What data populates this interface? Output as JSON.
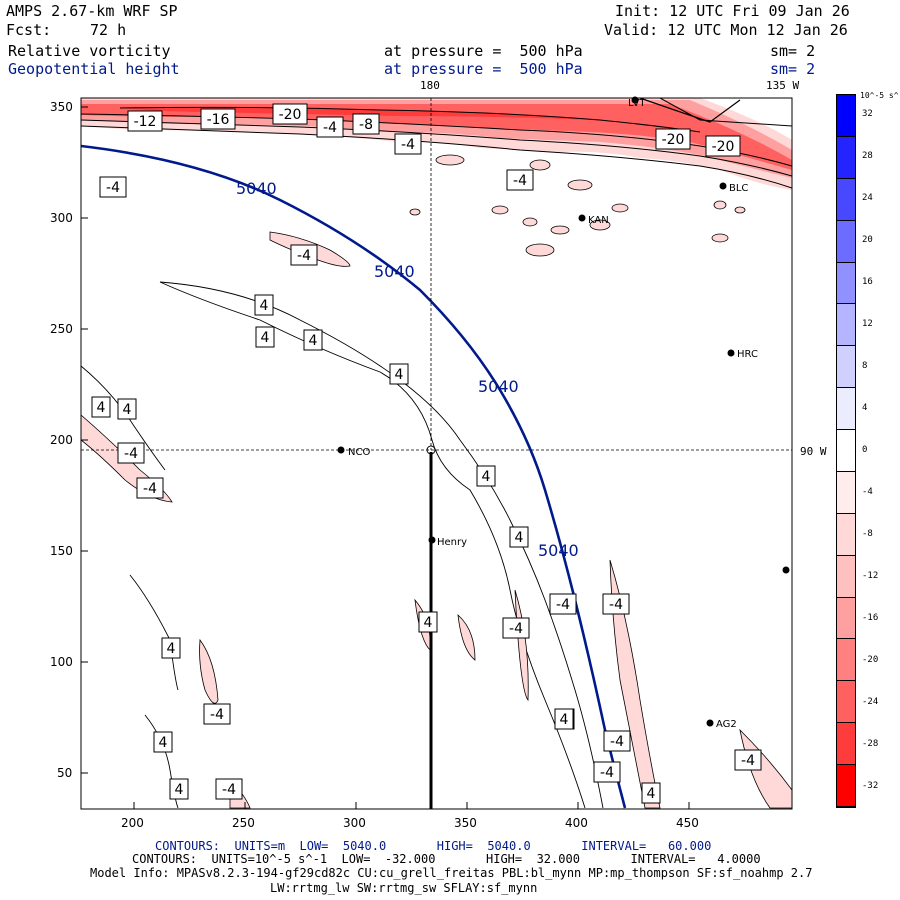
{
  "header": {
    "model": "AMPS 2.67-km WRF SP",
    "init": "Init: 12 UTC Fri 09 Jan 26",
    "fcst_label": "Fcst:",
    "fcst_value": "72 h",
    "valid": "Valid: 12 UTC Mon 12 Jan 26",
    "field1_name": "Relative vorticity",
    "field1_level": "at pressure =  500 hPa",
    "field1_sm": "sm= 2",
    "field2_name": "Geopotential height",
    "field2_level": "at pressure =  500 hPa",
    "field2_sm": "sm= 2"
  },
  "map": {
    "lon_label_180": "180",
    "lon_label_135w": "135 W",
    "lon_label_90w": "90 W",
    "x_ticks": [
      "200",
      "250",
      "300",
      "350",
      "400",
      "450"
    ],
    "y_ticks": [
      "350",
      "300",
      "250",
      "200",
      "150",
      "100",
      "50"
    ],
    "stations": [
      {
        "name": "LVT"
      },
      {
        "name": "BLC"
      },
      {
        "name": "KAN"
      },
      {
        "name": "HRC"
      },
      {
        "name": "NCO"
      },
      {
        "name": "Henry"
      },
      {
        "name": "AG2"
      }
    ],
    "height_contour_label": "5040",
    "vorticity_labels": [
      "-12",
      "-16",
      "-20",
      "-4",
      "-8",
      "-4",
      "-20",
      "-20",
      "-4",
      "-4",
      "-4",
      "4",
      "4",
      "4",
      "4",
      "4",
      "4",
      "-4",
      "-4",
      "4",
      "4",
      "-4",
      "4",
      "4",
      "-4",
      "-4",
      "4",
      "4",
      "-4",
      "4",
      "-4",
      "-4",
      "-4",
      "4",
      "-4",
      "4",
      "-4"
    ]
  },
  "colorbar": {
    "unit": "10^-5 s^-1",
    "labels": [
      "32",
      "28",
      "24",
      "20",
      "16",
      "12",
      "8",
      "4",
      "0",
      "-4",
      "-8",
      "-12",
      "-16",
      "-20",
      "-24",
      "-28",
      "-32"
    ],
    "colors": [
      "#0000ff",
      "#2424ff",
      "#4848ff",
      "#6c6cff",
      "#9090ff",
      "#b4b4ff",
      "#d0d0ff",
      "#ececff",
      "#ffffff",
      "#ffecec",
      "#ffd8d8",
      "#ffc0c0",
      "#ffa0a0",
      "#ff8080",
      "#ff6060",
      "#ff3c3c",
      "#ff0000"
    ]
  },
  "footer": {
    "line1": "CONTOURS:  UNITS=m  LOW=  5040.0       HIGH=  5040.0       INTERVAL=   60.000",
    "line2": "CONTOURS:  UNITS=10^-5 s^-1  LOW=  -32.000       HIGH=  32.000       INTERVAL=   4.0000",
    "line3": "Model Info: MPASv8.2.3-194-gf29cd82c CU:cu_grell_freitas PBL:bl_mynn MP:mp_thompson SF:sf_noahmp 2.7",
    "line4": "LW:rrtmg_lw SW:rrtmg_sw SFLAY:sf_mynn"
  }
}
